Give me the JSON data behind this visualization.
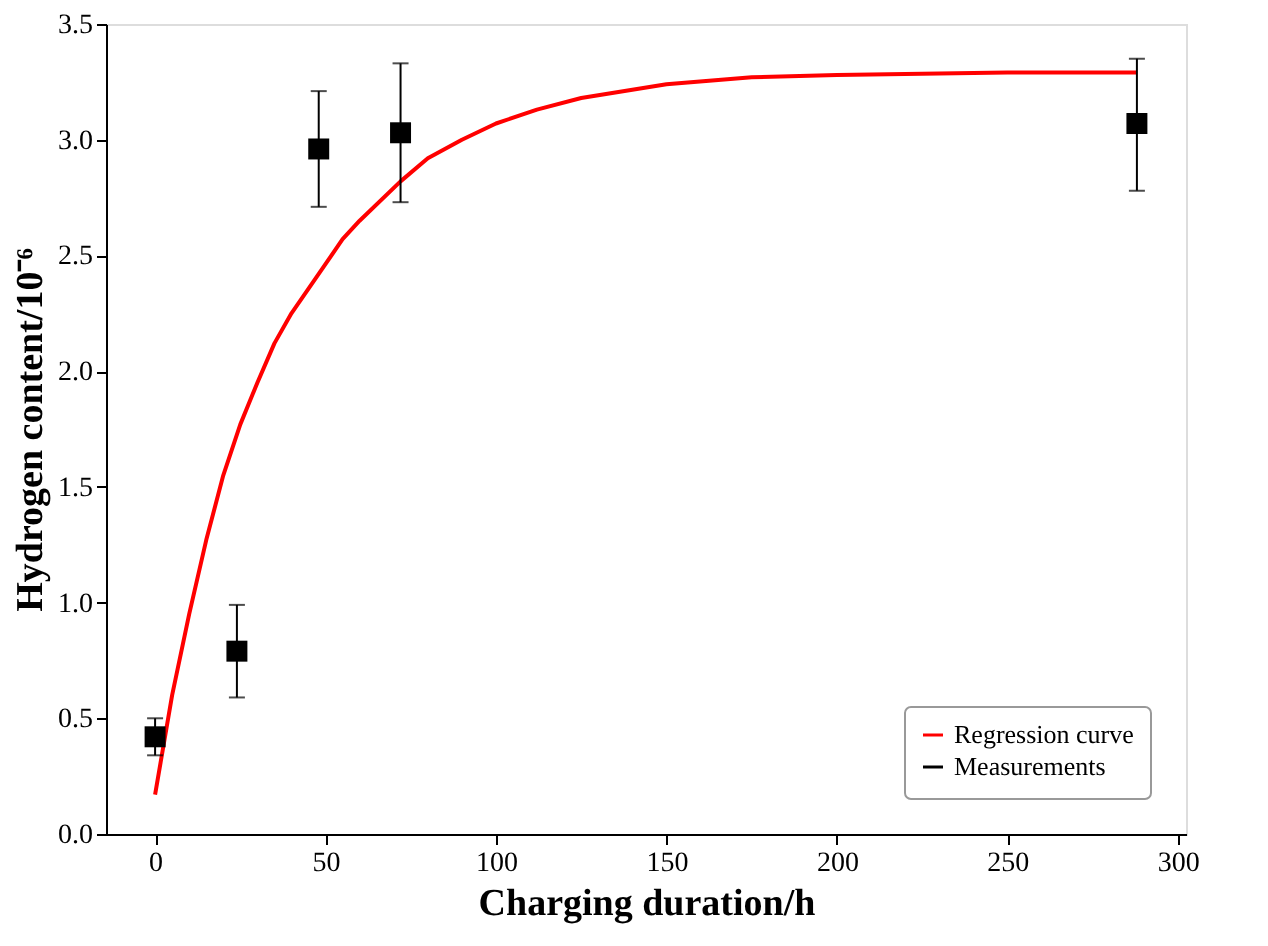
{
  "chart_data": {
    "type": "scatter",
    "xlabel": "Charging duration/h",
    "ylabel": "Hydrogen content/10⁻⁶",
    "xlim": [
      -14.4,
      302.4
    ],
    "xticks": [
      0,
      50,
      100,
      150,
      200,
      250,
      300
    ],
    "ylim": [
      0,
      3.5
    ],
    "yticks": [
      {
        "value": 0,
        "label": "0.0"
      },
      0.5,
      {
        "value": 1,
        "label": "1.0"
      },
      1.5,
      {
        "value": 2,
        "label": "2.0"
      },
      2.5,
      {
        "value": 3,
        "label": "3.0"
      },
      3.5
    ],
    "grid": false,
    "legend": "bottom right",
    "series": [
      {
        "name": "Regression curve",
        "type": "line",
        "color": "#ff0000",
        "line_style": "solid",
        "x": [
          0,
          5,
          10,
          15,
          20,
          25,
          30,
          35,
          40,
          48,
          55,
          60,
          72,
          80,
          90,
          100,
          112,
          125,
          150,
          175,
          200,
          250,
          288
        ],
        "values": [
          0.17,
          0.6,
          0.95,
          1.27,
          1.55,
          1.77,
          1.95,
          2.12,
          2.25,
          2.42,
          2.57,
          2.65,
          2.82,
          2.92,
          3.0,
          3.07,
          3.13,
          3.18,
          3.24,
          3.27,
          3.28,
          3.29,
          3.29
        ]
      },
      {
        "name": "Measurements",
        "marker": "square",
        "color": "#000000",
        "x": [
          0,
          24,
          48,
          72,
          288
        ],
        "values": [
          0.42,
          0.79,
          2.96,
          3.03,
          3.07
        ],
        "errors": [
          [
            0.34,
            0.5
          ],
          [
            0.59,
            0.99
          ],
          [
            2.71,
            3.21
          ],
          [
            2.73,
            3.33
          ],
          [
            2.78,
            3.35
          ]
        ]
      }
    ]
  }
}
